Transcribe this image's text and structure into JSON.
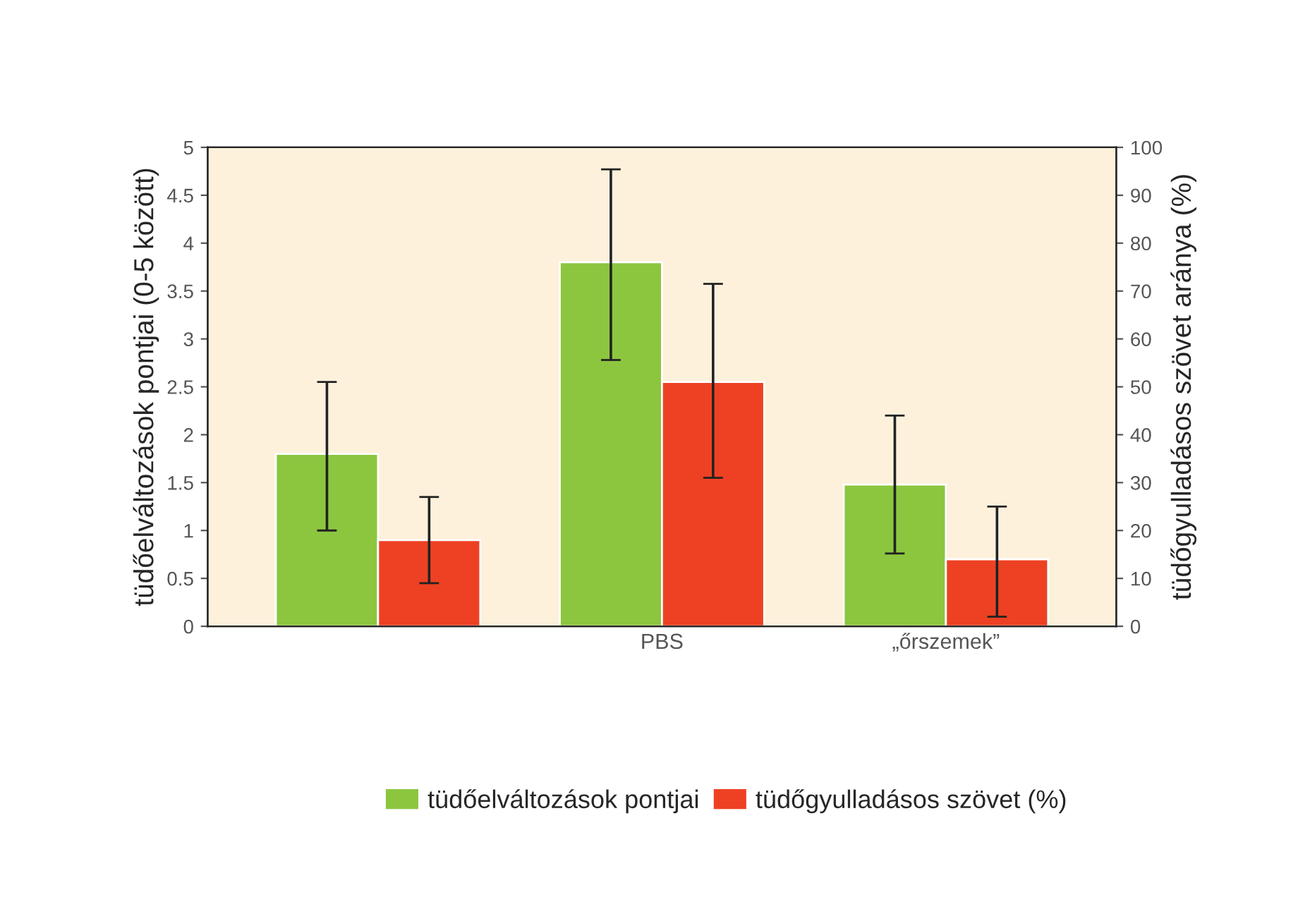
{
  "chart_data": {
    "type": "bar",
    "categories": [
      null,
      "PBS",
      "„őrszemek”"
    ],
    "ylabel": "tüdőelváltozások pontjai (0-5 között)",
    "y2label": "tüdőgyulladásos szövet aránya (%)",
    "series": [
      {
        "name": "tüdőelváltozások pontjai",
        "color": "#8cc63f",
        "values": [
          1.8,
          3.8,
          1.48
        ],
        "errors": [
          [
            1.0,
            2.55
          ],
          [
            2.78,
            4.77
          ],
          [
            0.76,
            2.2
          ]
        ]
      },
      {
        "name": "tüdőgyulladásos szövet (%)",
        "color": "#ee4123",
        "axis": "y2",
        "values": [
          18,
          51,
          14
        ],
        "errors": [
          [
            9,
            27
          ],
          [
            31,
            71.5
          ],
          [
            2,
            25
          ]
        ]
      }
    ],
    "ylim": [
      0,
      5
    ],
    "yticks": [
      0,
      0.5,
      1,
      1.5,
      2,
      2.5,
      3,
      3.5,
      4,
      4.5,
      5
    ],
    "y2lim": [
      0,
      100
    ],
    "y2ticks": [
      0,
      10,
      20,
      30,
      40,
      50,
      60,
      70,
      80,
      90,
      100
    ],
    "grid": false,
    "legend": "bottom"
  }
}
